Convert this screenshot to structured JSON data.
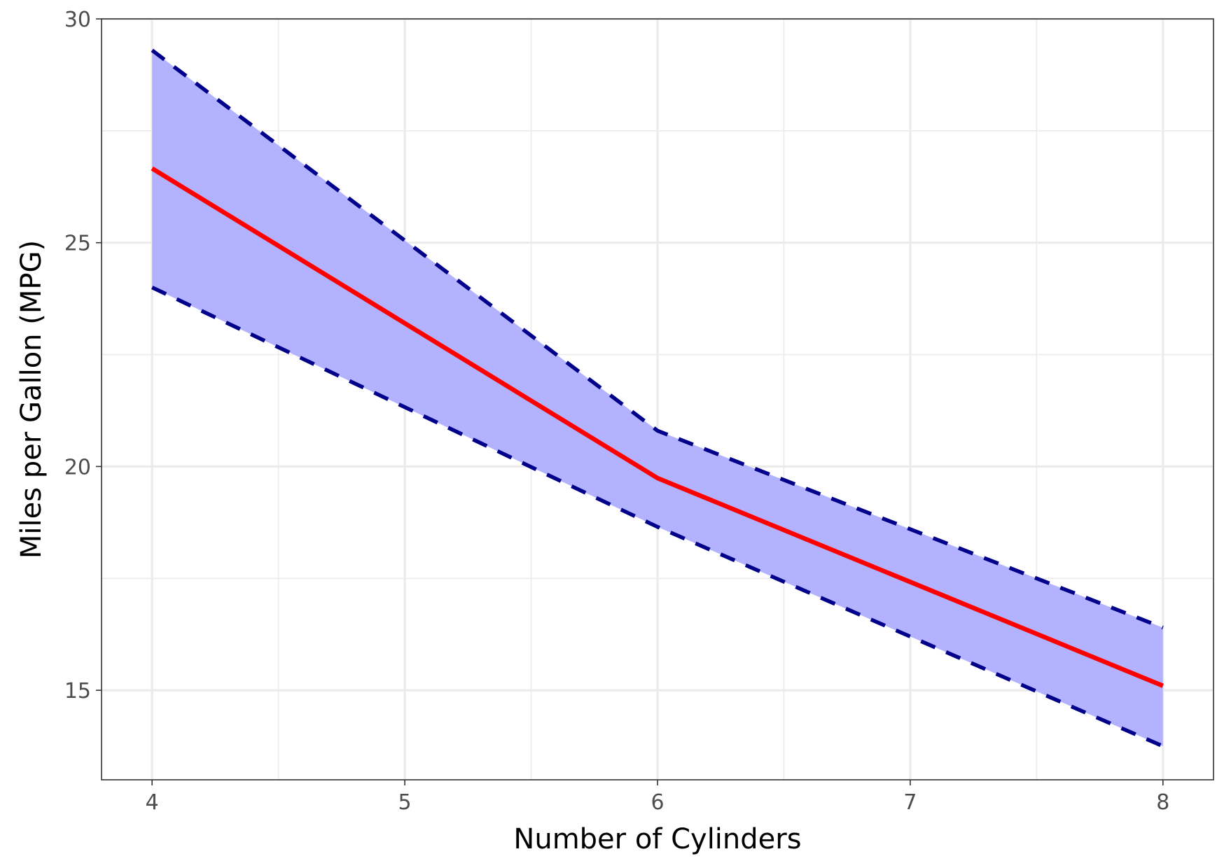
{
  "chart_data": {
    "type": "line",
    "title": "",
    "xlabel": "Number of Cylinders",
    "ylabel": "Miles per Gallon (MPG)",
    "xlim": [
      3.8,
      8.2
    ],
    "ylim": [
      13,
      30
    ],
    "x_ticks": [
      4,
      5,
      6,
      7,
      8
    ],
    "x_tick_labels": [
      "4",
      "5",
      "6",
      "7",
      "8"
    ],
    "y_ticks": [
      15,
      20,
      25,
      30
    ],
    "y_tick_labels": [
      "15",
      "20",
      "25",
      "30"
    ],
    "grid": true,
    "legend": "none",
    "x": [
      4,
      6,
      8
    ],
    "series": [
      {
        "role": "fit",
        "style": "solid",
        "color": "#ff0000",
        "values": [
          26.66,
          19.74,
          15.1
        ]
      },
      {
        "role": "upper",
        "style": "dashed",
        "color": "#00008b",
        "values": [
          29.3,
          20.8,
          16.4
        ]
      },
      {
        "role": "lower",
        "style": "dashed",
        "color": "#00008b",
        "values": [
          24.0,
          18.65,
          13.75
        ]
      }
    ],
    "ribbon_color": "#b2b2ff"
  }
}
